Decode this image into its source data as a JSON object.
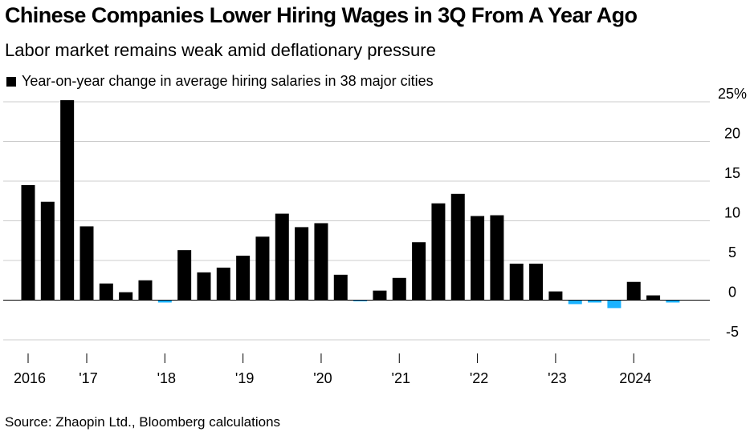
{
  "header": {
    "title": "Chinese Companies Lower Hiring Wages in 3Q From A Year Ago",
    "subtitle": "Labor market remains weak amid deflationary pressure"
  },
  "legend": {
    "label": "Year-on-year change in average hiring salaries in 38 major cities"
  },
  "footer": {
    "source": "Source: Zhaopin Ltd., Bloomberg calculations"
  },
  "colors": {
    "positive": "#000000",
    "negative": "#1ab2ff",
    "grid": "#cccccc"
  },
  "chart_data": {
    "type": "bar",
    "title": "Chinese Companies Lower Hiring Wages in 3Q From A Year Ago",
    "subtitle": "Labor market remains weak amid deflationary pressure",
    "ylabel": "",
    "xlabel": "",
    "ylim": [
      -5,
      25
    ],
    "yticks": [
      -5,
      0,
      5,
      10,
      15,
      20,
      25
    ],
    "ytick_labels": [
      "-5",
      "0",
      "5",
      "10",
      "15",
      "20",
      "25%"
    ],
    "y_axis_side": "right",
    "grid": true,
    "legend_position": "top-left",
    "x": [
      "2016Q1",
      "2016Q2",
      "2016Q3",
      "2016Q4",
      "2017Q1",
      "2017Q2",
      "2017Q3",
      "2017Q4",
      "2018Q1",
      "2018Q2",
      "2018Q3",
      "2018Q4",
      "2019Q1",
      "2019Q2",
      "2019Q3",
      "2019Q4",
      "2020Q1",
      "2020Q2",
      "2020Q3",
      "2020Q4",
      "2021Q1",
      "2021Q2",
      "2021Q3",
      "2021Q4",
      "2022Q1",
      "2022Q2",
      "2022Q3",
      "2022Q4",
      "2023Q1",
      "2023Q2",
      "2023Q3",
      "2023Q4",
      "2024Q1",
      "2024Q2",
      "2024Q3"
    ],
    "series": [
      {
        "values": [
          14.5,
          12.4,
          25.2,
          9.3,
          2.1,
          1.0,
          2.5,
          -0.3,
          6.3,
          3.5,
          4.1,
          5.6,
          8.0,
          10.9,
          9.2,
          9.7,
          3.2,
          -0.1,
          1.2,
          2.8,
          7.3,
          12.2,
          13.4,
          10.6,
          10.7,
          4.6,
          4.6,
          1.1,
          -0.5,
          -0.3,
          -1.0,
          2.3,
          0.6,
          -0.3,
          0.0
        ]
      }
    ],
    "xtick_labels": [
      {
        "label": "2016",
        "index": 0
      },
      {
        "label": "'17",
        "index": 3
      },
      {
        "label": "'18",
        "index": 7
      },
      {
        "label": "'19",
        "index": 11
      },
      {
        "label": "'20",
        "index": 15
      },
      {
        "label": "'21",
        "index": 19
      },
      {
        "label": "'22",
        "index": 23
      },
      {
        "label": "'23",
        "index": 27
      },
      {
        "label": "2024",
        "index": 31
      }
    ]
  }
}
